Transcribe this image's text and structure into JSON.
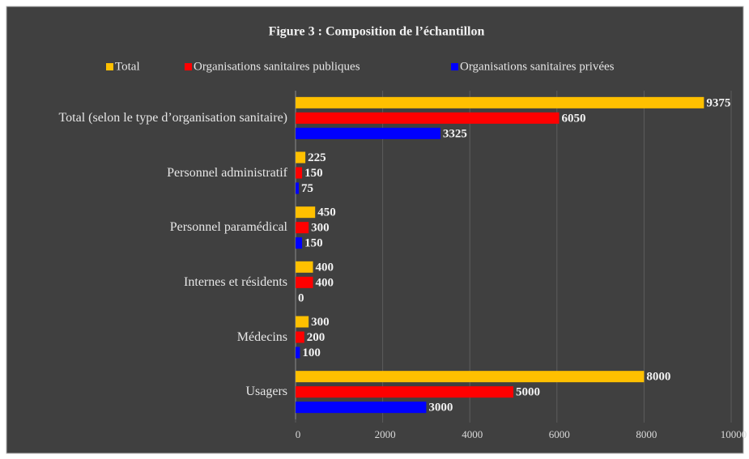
{
  "chart_data": {
    "type": "bar",
    "orientation": "horizontal",
    "title": "Figure 3 : Composition  de l’échantillon",
    "categories": [
      "Total (selon le type d’organisation sanitaire)",
      "Personnel administratif",
      "Personnel paramédical",
      "Internes et résidents",
      "Médecins",
      "Usagers"
    ],
    "series": [
      {
        "name": "Total",
        "color": "#ffc000",
        "values": [
          9375,
          225,
          450,
          400,
          300,
          8000
        ]
      },
      {
        "name": "Organisations sanitaires publiques",
        "color": "#ff0000",
        "values": [
          6050,
          150,
          300,
          400,
          200,
          5000
        ]
      },
      {
        "name": "Organisations sanitaires privées",
        "color": "#0000ff",
        "values": [
          3325,
          75,
          150,
          0,
          100,
          3000
        ]
      }
    ],
    "xlim": [
      0,
      10000
    ],
    "xticks": [
      0,
      2000,
      4000,
      6000,
      8000,
      10000
    ],
    "grid": true,
    "legend": "top"
  }
}
